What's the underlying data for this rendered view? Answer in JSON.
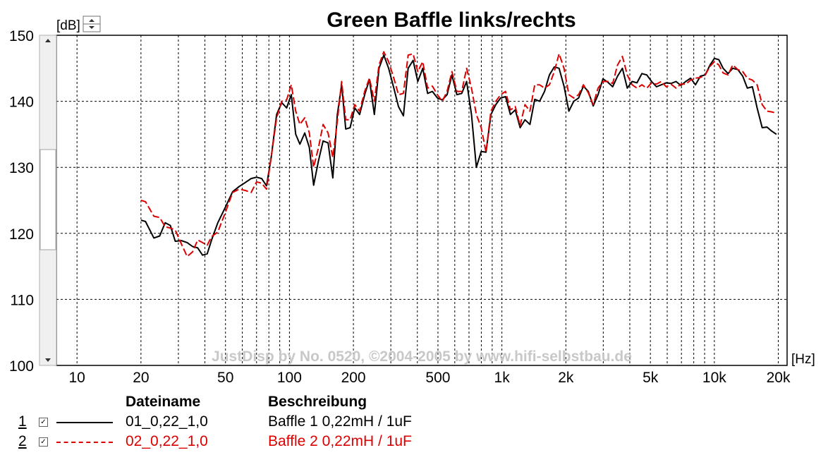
{
  "chart_data": {
    "type": "line",
    "title": "Green Baffle links/rechts",
    "ylabel": "[dB]",
    "xlabel": "[Hz]",
    "x_scale": "log",
    "xlim": [
      8,
      22000
    ],
    "ylim": [
      100,
      150
    ],
    "y_ticks": [
      100,
      110,
      120,
      130,
      140,
      150
    ],
    "x_ticks": [
      {
        "v": 10,
        "label": "10"
      },
      {
        "v": 20,
        "label": "20"
      },
      {
        "v": 50,
        "label": "50"
      },
      {
        "v": 100,
        "label": "100"
      },
      {
        "v": 200,
        "label": "200"
      },
      {
        "v": 500,
        "label": "500"
      },
      {
        "v": 1000,
        "label": "1k"
      },
      {
        "v": 2000,
        "label": "2k"
      },
      {
        "v": 5000,
        "label": "5k"
      },
      {
        "v": 10000,
        "label": "10k"
      },
      {
        "v": 20000,
        "label": "20k"
      }
    ],
    "grid": true,
    "watermark": "JustDisp by No. 0520, ©2004-2005 by www.hifi-selbstbau.de",
    "series": [
      {
        "name": "01_0,22_1,0",
        "color": "#000000",
        "style": "solid",
        "points": [
          [
            20,
            122.0
          ],
          [
            21,
            121.8
          ],
          [
            23,
            119.3
          ],
          [
            24.5,
            119.6
          ],
          [
            26,
            121.6
          ],
          [
            27.5,
            121.2
          ],
          [
            29,
            118.8
          ],
          [
            31,
            118.9
          ],
          [
            33,
            118.6
          ],
          [
            35,
            118.0
          ],
          [
            37,
            117.8
          ],
          [
            39,
            116.7
          ],
          [
            41,
            116.9
          ],
          [
            43,
            119.0
          ],
          [
            46,
            121.6
          ],
          [
            50,
            124.0
          ],
          [
            54,
            126.3
          ],
          [
            58,
            127.1
          ],
          [
            62,
            127.7
          ],
          [
            66,
            128.3
          ],
          [
            70,
            128.5
          ],
          [
            74,
            128.3
          ],
          [
            78,
            127.2
          ],
          [
            82,
            131.5
          ],
          [
            87,
            138.0
          ],
          [
            92,
            139.8
          ],
          [
            97,
            139.0
          ],
          [
            102,
            141.0
          ],
          [
            107,
            135.0
          ],
          [
            112,
            133.5
          ],
          [
            118,
            135.2
          ],
          [
            124,
            133.0
          ],
          [
            130,
            127.3
          ],
          [
            137,
            131.0
          ],
          [
            144,
            134.0
          ],
          [
            152,
            133.7
          ],
          [
            160,
            128.4
          ],
          [
            168,
            138.0
          ],
          [
            176,
            142.5
          ],
          [
            184,
            135.8
          ],
          [
            193,
            136.0
          ],
          [
            203,
            139.0
          ],
          [
            214,
            138.0
          ],
          [
            226,
            141.0
          ],
          [
            238,
            143.3
          ],
          [
            251,
            138.0
          ],
          [
            264,
            145.0
          ],
          [
            278,
            147.0
          ],
          [
            293,
            145.0
          ],
          [
            310,
            142.0
          ],
          [
            326,
            139.2
          ],
          [
            344,
            137.8
          ],
          [
            362,
            145.0
          ],
          [
            382,
            146.2
          ],
          [
            402,
            143.0
          ],
          [
            424,
            145.0
          ],
          [
            447,
            141.2
          ],
          [
            471,
            141.5
          ],
          [
            497,
            140.5
          ],
          [
            524,
            140.2
          ],
          [
            552,
            141.0
          ],
          [
            582,
            144.0
          ],
          [
            614,
            141.0
          ],
          [
            647,
            141.2
          ],
          [
            682,
            143.0
          ],
          [
            719,
            138.0
          ],
          [
            758,
            130.0
          ],
          [
            799,
            132.4
          ],
          [
            842,
            132.3
          ],
          [
            888,
            138.0
          ],
          [
            936,
            139.5
          ],
          [
            987,
            140.5
          ],
          [
            1040,
            140.7
          ],
          [
            1097,
            138.0
          ],
          [
            1156,
            138.7
          ],
          [
            1219,
            136.0
          ],
          [
            1285,
            137.2
          ],
          [
            1355,
            136.5
          ],
          [
            1428,
            140.3
          ],
          [
            1505,
            140.0
          ],
          [
            1587,
            141.5
          ],
          [
            1673,
            144.0
          ],
          [
            1764,
            145.2
          ],
          [
            1859,
            145.0
          ],
          [
            1960,
            142.3
          ],
          [
            2066,
            138.5
          ],
          [
            2178,
            140.0
          ],
          [
            2296,
            140.5
          ],
          [
            2420,
            142.3
          ],
          [
            2551,
            141.5
          ],
          [
            2690,
            139.3
          ],
          [
            2836,
            141.0
          ],
          [
            2989,
            143.4
          ],
          [
            3151,
            142.9
          ],
          [
            3322,
            142.2
          ],
          [
            3502,
            143.8
          ],
          [
            3692,
            145.0
          ],
          [
            3892,
            142.0
          ],
          [
            4103,
            143.0
          ],
          [
            4325,
            142.8
          ],
          [
            4560,
            144.2
          ],
          [
            4807,
            144.0
          ],
          [
            5067,
            143.0
          ],
          [
            5342,
            142.2
          ],
          [
            5631,
            142.5
          ],
          [
            5937,
            142.8
          ],
          [
            6258,
            142.7
          ],
          [
            6598,
            143.0
          ],
          [
            6955,
            142.4
          ],
          [
            7332,
            143.0
          ],
          [
            7730,
            143.5
          ],
          [
            8149,
            142.5
          ],
          [
            8590,
            143.8
          ],
          [
            9056,
            144.0
          ],
          [
            9546,
            145.5
          ],
          [
            10000,
            146.5
          ],
          [
            10500,
            146.3
          ],
          [
            11000,
            145.0
          ],
          [
            11600,
            144.2
          ],
          [
            12200,
            145.0
          ],
          [
            12900,
            144.8
          ],
          [
            13600,
            143.8
          ],
          [
            14300,
            142.0
          ],
          [
            15100,
            142.2
          ],
          [
            15900,
            139.0
          ],
          [
            16800,
            136.0
          ],
          [
            17700,
            136.1
          ],
          [
            18600,
            135.5
          ],
          [
            19600,
            135.0
          ]
        ]
      },
      {
        "name": "02_0,22_1,0",
        "color": "#dd0000",
        "style": "dashed",
        "points": [
          [
            20,
            125.0
          ],
          [
            21,
            124.8
          ],
          [
            23,
            122.6
          ],
          [
            24.5,
            122.4
          ],
          [
            26,
            121.0
          ],
          [
            27.5,
            120.8
          ],
          [
            29,
            120.5
          ],
          [
            31,
            118.4
          ],
          [
            33,
            116.5
          ],
          [
            35,
            117.2
          ],
          [
            37,
            119.0
          ],
          [
            39,
            118.6
          ],
          [
            41,
            118.2
          ],
          [
            43,
            119.5
          ],
          [
            46,
            120.2
          ],
          [
            50,
            123.2
          ],
          [
            54,
            126.2
          ],
          [
            58,
            126.7
          ],
          [
            62,
            126.5
          ],
          [
            66,
            126.2
          ],
          [
            70,
            127.8
          ],
          [
            74,
            127.6
          ],
          [
            78,
            126.7
          ],
          [
            82,
            131.5
          ],
          [
            87,
            137.5
          ],
          [
            92,
            140.0
          ],
          [
            97,
            140.2
          ],
          [
            102,
            142.5
          ],
          [
            107,
            138.5
          ],
          [
            112,
            136.5
          ],
          [
            118,
            137.5
          ],
          [
            124,
            135.2
          ],
          [
            130,
            130.0
          ],
          [
            137,
            133.0
          ],
          [
            144,
            136.5
          ],
          [
            152,
            135.2
          ],
          [
            160,
            131.5
          ],
          [
            168,
            137.0
          ],
          [
            176,
            143.0
          ],
          [
            184,
            137.2
          ],
          [
            193,
            137.2
          ],
          [
            203,
            139.5
          ],
          [
            214,
            138.5
          ],
          [
            226,
            141.5
          ],
          [
            238,
            143.5
          ],
          [
            251,
            140.0
          ],
          [
            264,
            145.5
          ],
          [
            278,
            147.5
          ],
          [
            293,
            146.0
          ],
          [
            310,
            143.5
          ],
          [
            326,
            141.0
          ],
          [
            344,
            141.2
          ],
          [
            362,
            147.0
          ],
          [
            382,
            147.2
          ],
          [
            402,
            144.5
          ],
          [
            424,
            146.0
          ],
          [
            447,
            142.0
          ],
          [
            471,
            142.3
          ],
          [
            497,
            141.0
          ],
          [
            524,
            140.0
          ],
          [
            552,
            141.5
          ],
          [
            582,
            144.5
          ],
          [
            614,
            141.5
          ],
          [
            647,
            141.5
          ],
          [
            682,
            145.0
          ],
          [
            719,
            142.0
          ],
          [
            758,
            138.0
          ],
          [
            799,
            136.0
          ],
          [
            842,
            132.3
          ],
          [
            888,
            138.5
          ],
          [
            936,
            140.0
          ],
          [
            987,
            141.0
          ],
          [
            1040,
            141.5
          ],
          [
            1097,
            138.7
          ],
          [
            1156,
            139.2
          ],
          [
            1219,
            136.3
          ],
          [
            1285,
            139.5
          ],
          [
            1355,
            138.5
          ],
          [
            1428,
            142.5
          ],
          [
            1505,
            142.5
          ],
          [
            1587,
            142.0
          ],
          [
            1673,
            142.5
          ],
          [
            1764,
            144.5
          ],
          [
            1859,
            147.2
          ],
          [
            1960,
            145.0
          ],
          [
            2066,
            141.0
          ],
          [
            2178,
            140.5
          ],
          [
            2296,
            141.0
          ],
          [
            2420,
            142.5
          ],
          [
            2551,
            141.3
          ],
          [
            2690,
            139.5
          ],
          [
            2836,
            142.0
          ],
          [
            2989,
            143.0
          ],
          [
            3151,
            143.0
          ],
          [
            3322,
            142.7
          ],
          [
            3502,
            145.5
          ],
          [
            3692,
            146.8
          ],
          [
            3892,
            144.0
          ],
          [
            4103,
            142.5
          ],
          [
            4325,
            142.0
          ],
          [
            4560,
            142.5
          ],
          [
            4807,
            142.0
          ],
          [
            5067,
            142.8
          ],
          [
            5342,
            142.6
          ],
          [
            5631,
            143.0
          ],
          [
            5937,
            142.2
          ],
          [
            6258,
            142.6
          ],
          [
            6598,
            142.0
          ],
          [
            6955,
            142.6
          ],
          [
            7332,
            142.6
          ],
          [
            7730,
            143.2
          ],
          [
            8149,
            143.5
          ],
          [
            8590,
            143.6
          ],
          [
            9056,
            144.0
          ],
          [
            9546,
            145.3
          ],
          [
            10000,
            146.0
          ],
          [
            10500,
            145.5
          ],
          [
            11000,
            144.3
          ],
          [
            11600,
            144.0
          ],
          [
            12200,
            145.5
          ],
          [
            12900,
            144.8
          ],
          [
            13600,
            144.5
          ],
          [
            14300,
            143.5
          ],
          [
            15100,
            143.2
          ],
          [
            15900,
            142.5
          ],
          [
            16800,
            139.5
          ],
          [
            17700,
            138.5
          ],
          [
            18600,
            138.4
          ],
          [
            19600,
            138.2
          ]
        ]
      }
    ]
  },
  "legend": {
    "header_name": "Dateiname",
    "header_desc": "Beschreibung",
    "check_mark": "☑",
    "rows": [
      {
        "index": "1",
        "name": "01_0,22_1,0",
        "desc": "Baffle 1 0,22mH / 1uF",
        "color": "#000000"
      },
      {
        "index": "2",
        "name": "02_0,22_1,0",
        "desc": "Baffle 2 0,22mH / 1uF",
        "color": "#dd0000"
      }
    ]
  }
}
